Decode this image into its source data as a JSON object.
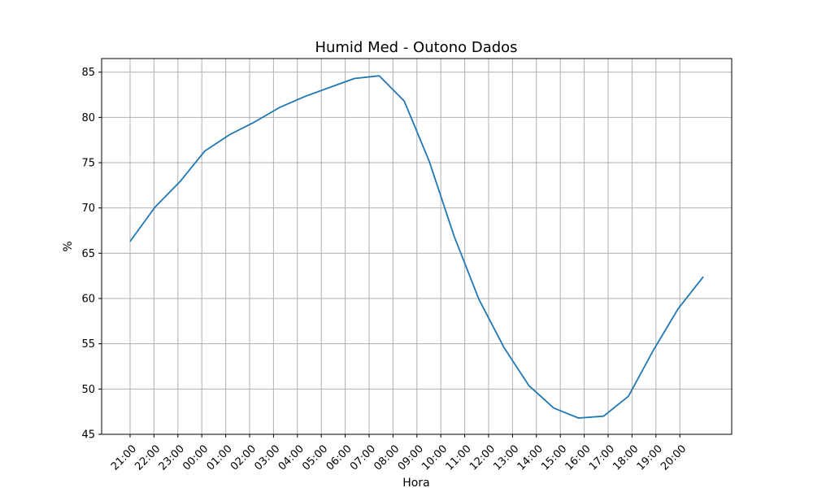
{
  "chart_data": {
    "type": "line",
    "title": "Humid Med - Outono Dados",
    "xlabel": "Hora",
    "ylabel": "%",
    "categories": [
      "21:00",
      "22:00",
      "23:00",
      "00:00",
      "01:00",
      "02:00",
      "03:00",
      "04:00",
      "05:00",
      "06:00",
      "07:00",
      "08:00",
      "09:00",
      "10:00",
      "11:00",
      "12:00",
      "13:00",
      "14:00",
      "15:00",
      "16:00",
      "17:00",
      "18:00",
      "19:00",
      "20:00"
    ],
    "series": [
      {
        "color": "#1f77b4",
        "values": [
          66.3,
          70.1,
          72.9,
          76.3,
          78.1,
          79.5,
          81.1,
          82.3,
          83.3,
          84.3,
          84.6,
          81.8,
          75.2,
          66.9,
          59.9,
          54.6,
          50.4,
          47.9,
          46.8,
          47.0,
          49.2,
          54.3,
          58.9,
          62.4
        ]
      }
    ],
    "yticks": [
      45,
      50,
      55,
      60,
      65,
      70,
      75,
      80,
      85
    ],
    "ylim": [
      45,
      86.5
    ],
    "grid": true
  }
}
